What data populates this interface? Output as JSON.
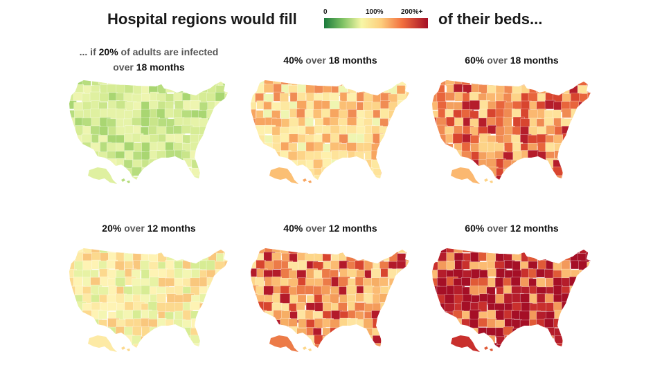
{
  "header": {
    "title_left": "Hospital regions would fill",
    "title_right": "of their beds...",
    "legend": {
      "tick_0": "0",
      "tick_100": "100%",
      "tick_200": "200%+",
      "colors": [
        "#1a7a3c",
        "#7fc264",
        "#f7f7a6",
        "#fdce7d",
        "#f2703f",
        "#a50f26"
      ]
    }
  },
  "panels": [
    {
      "line1": [
        "... if ",
        "20%",
        " of adults are infected"
      ],
      "line2": [
        "over ",
        "18 months"
      ],
      "palette": [
        "#c9e58a",
        "#d6ec95",
        "#dff0a0",
        "#b7dd7e",
        "#eef5b0",
        "#a9d672",
        "#e6f3a8"
      ]
    },
    {
      "line1": [
        "40%",
        " over ",
        "18 months"
      ],
      "palette": [
        "#fee39a",
        "#fdd488",
        "#fbbf74",
        "#f7a560",
        "#eff5b1",
        "#fef0ac",
        "#f08c54",
        "#fde8a0"
      ]
    },
    {
      "line1": [
        "60%",
        " over ",
        "18 months"
      ],
      "palette": [
        "#f08a52",
        "#e8653c",
        "#fbb870",
        "#fdd387",
        "#d8452f",
        "#b51d2b",
        "#fee29a",
        "#f4a05e"
      ]
    },
    {
      "line1": [
        "20%",
        " over ",
        "12 months"
      ],
      "palette": [
        "#f4f6b3",
        "#e7f2a4",
        "#fdeaa5",
        "#fcd98e",
        "#d7ec94",
        "#fef3b4",
        "#f9c77d"
      ]
    },
    {
      "line1": [
        "40%",
        " over ",
        "12 months"
      ],
      "palette": [
        "#fbbb72",
        "#f49c5a",
        "#ec7b48",
        "#fdd689",
        "#d8452f",
        "#b31a2a",
        "#fee4a0",
        "#f6ae65"
      ]
    },
    {
      "line1": [
        "60%",
        " over ",
        "12 months"
      ],
      "palette": [
        "#a50f26",
        "#b51d2b",
        "#c9302d",
        "#e05a37",
        "#a50f26",
        "#f39a5b",
        "#fbbb72",
        "#a50f26"
      ]
    }
  ]
}
